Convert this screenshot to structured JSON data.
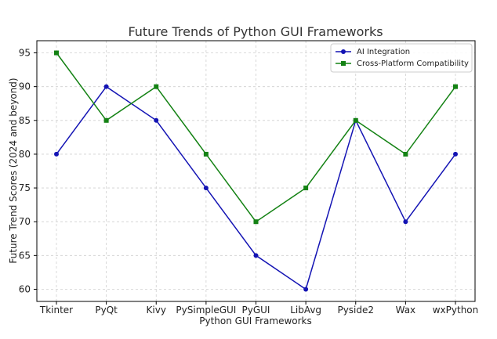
{
  "chart_data": {
    "type": "line",
    "title": "Future Trends of Python GUI Frameworks",
    "xlabel": "Python GUI Frameworks",
    "ylabel": "Future Trend Scores (2024 and beyond)",
    "categories": [
      "Tkinter",
      "PyQt",
      "Kivy",
      "PySimpleGUI",
      "PyGUI",
      "LibAvg",
      "Pyside2",
      "Wax",
      "wxPython"
    ],
    "series": [
      {
        "name": "AI Integration",
        "values": [
          80,
          90,
          85,
          75,
          65,
          60,
          85,
          70,
          80
        ],
        "color": "#1414b4",
        "marker": "circle"
      },
      {
        "name": "Cross-Platform Compatibility",
        "values": [
          95,
          85,
          90,
          80,
          70,
          75,
          85,
          80,
          90
        ],
        "color": "#148214",
        "marker": "square"
      }
    ],
    "ylim": [
      58.2,
      96.8
    ],
    "yticks": [
      60,
      65,
      70,
      75,
      80,
      85,
      90,
      95
    ],
    "grid": true,
    "legend_position": "top-right"
  }
}
